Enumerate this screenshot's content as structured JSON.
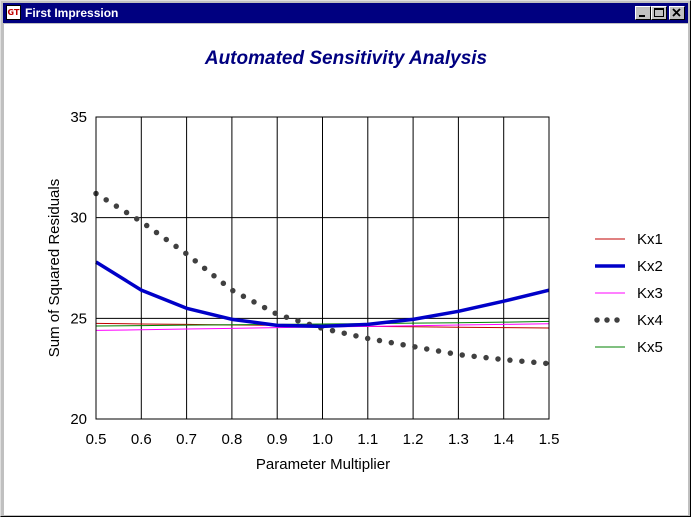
{
  "window": {
    "title": "First Impression",
    "app_icon_text": "GT"
  },
  "chart_data": {
    "type": "line",
    "title": "Automated Sensitivity Analysis",
    "xlabel": "Parameter Multiplier",
    "ylabel": "Sum of Squared Residuals",
    "xlim": [
      0.5,
      1.5
    ],
    "ylim": [
      20,
      35
    ],
    "x_ticks": [
      0.5,
      0.6,
      0.7,
      0.8,
      0.9,
      1.0,
      1.1,
      1.2,
      1.3,
      1.4,
      1.5
    ],
    "x_tick_labels": [
      "0.5",
      "0.6",
      "0.7",
      "0.8",
      "0.9",
      "1.0",
      "1.1",
      "1.2",
      "1.3",
      "1.4",
      "1.5"
    ],
    "y_ticks": [
      20,
      25,
      30,
      35
    ],
    "y_tick_labels": [
      "20",
      "25",
      "30",
      "35"
    ],
    "grid": true,
    "legend_position": "right",
    "x": [
      0.5,
      0.6,
      0.7,
      0.8,
      0.9,
      1.0,
      1.1,
      1.2,
      1.3,
      1.4,
      1.5
    ],
    "series": [
      {
        "name": "Kx1",
        "color": "#c00000",
        "style": "thin",
        "values": [
          24.75,
          24.72,
          24.7,
          24.67,
          24.65,
          24.62,
          24.6,
          24.58,
          24.56,
          24.54,
          24.52
        ]
      },
      {
        "name": "Kx2",
        "color": "#0000c8",
        "style": "thick",
        "values": [
          27.8,
          26.4,
          25.5,
          24.95,
          24.65,
          24.6,
          24.7,
          24.95,
          25.35,
          25.85,
          26.4
        ]
      },
      {
        "name": "Kx3",
        "color": "#ff00ff",
        "style": "thin",
        "values": [
          24.4,
          24.43,
          24.47,
          24.5,
          24.54,
          24.57,
          24.6,
          24.63,
          24.67,
          24.7,
          24.73
        ]
      },
      {
        "name": "Kx4",
        "color": "#404040",
        "style": "dotted",
        "values": [
          31.2,
          29.8,
          28.2,
          26.4,
          25.2,
          24.5,
          24.0,
          23.6,
          23.2,
          22.95,
          22.75
        ]
      },
      {
        "name": "Kx5",
        "color": "#008000",
        "style": "thin",
        "values": [
          24.62,
          24.64,
          24.66,
          24.68,
          24.7,
          24.72,
          24.74,
          24.76,
          24.78,
          24.81,
          24.85
        ]
      }
    ]
  }
}
